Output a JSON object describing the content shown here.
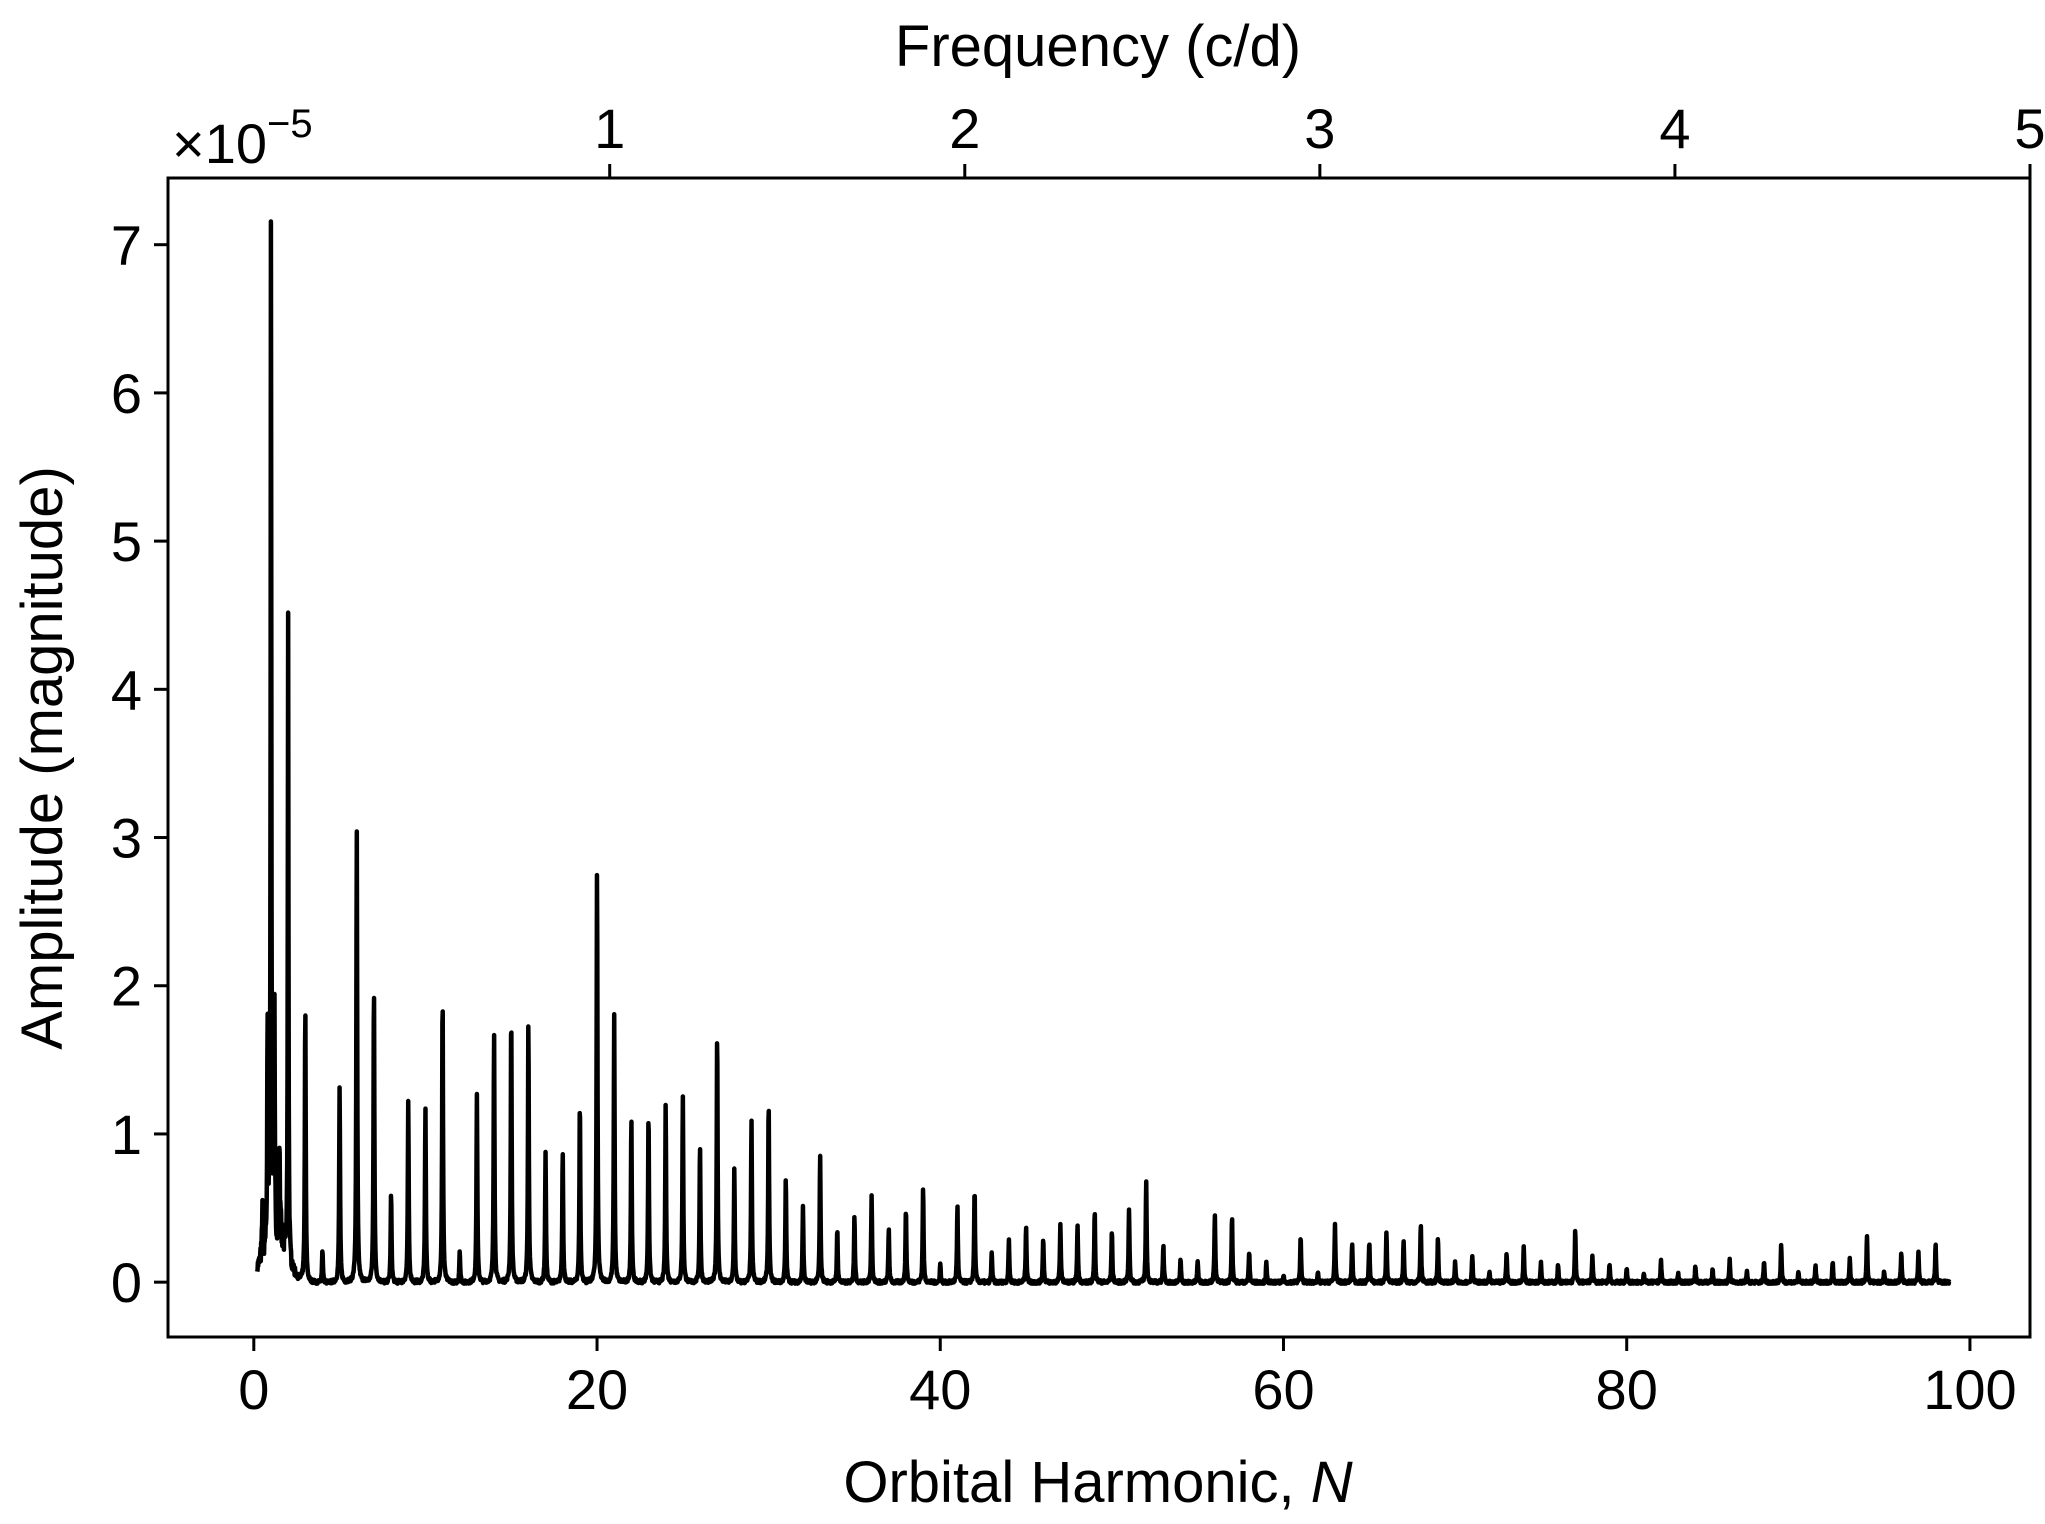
{
  "chart_data": {
    "type": "line",
    "title": "",
    "xlabel": "Orbital Harmonic, ",
    "xlabel_var": "N",
    "ylabel": "Amplitude (magnitude)",
    "top_xlabel": "Frequency (c/d)",
    "y_multiplier_label": "×10",
    "y_multiplier_exp": "−5",
    "xlim": [
      -5,
      103.5
    ],
    "ylim": [
      -0.37,
      7.45
    ],
    "top_xlim": [
      -0.244,
      5.0
    ],
    "x_ticks": [
      0,
      20,
      40,
      60,
      80,
      100
    ],
    "x_tick_labels": [
      "0",
      "20",
      "40",
      "60",
      "80",
      "100"
    ],
    "y_ticks": [
      0,
      1,
      2,
      3,
      4,
      5,
      6,
      7
    ],
    "y_tick_labels": [
      "0",
      "1",
      "2",
      "3",
      "4",
      "5",
      "6",
      "7"
    ],
    "top_ticks": [
      1,
      2,
      3,
      4,
      5
    ],
    "top_tick_labels": [
      "1",
      "2",
      "3",
      "4",
      "5"
    ],
    "grid": false,
    "line_color": "#000000",
    "x_range_data": [
      0.2,
      98.8
    ],
    "series": [
      {
        "peaks": [
          {
            "x": 0.5,
            "y": 0.3
          },
          {
            "x": 0.8,
            "y": 1.45
          },
          {
            "x": 1.0,
            "y": 7.08
          },
          {
            "x": 1.2,
            "y": 1.55
          },
          {
            "x": 1.5,
            "y": 0.7
          },
          {
            "x": 2.0,
            "y": 4.4
          },
          {
            "x": 3.0,
            "y": 1.88
          },
          {
            "x": 4.0,
            "y": 0.23
          },
          {
            "x": 5.0,
            "y": 1.33
          },
          {
            "x": 6.0,
            "y": 3.06
          },
          {
            "x": 7.0,
            "y": 2.04
          },
          {
            "x": 8.0,
            "y": 0.61
          },
          {
            "x": 9.0,
            "y": 1.23
          },
          {
            "x": 10.0,
            "y": 1.19
          },
          {
            "x": 11.0,
            "y": 1.97
          },
          {
            "x": 12.0,
            "y": 0.22
          },
          {
            "x": 13.0,
            "y": 1.27
          },
          {
            "x": 14.0,
            "y": 1.71
          },
          {
            "x": 15.0,
            "y": 1.85
          },
          {
            "x": 16.0,
            "y": 1.77
          },
          {
            "x": 17.0,
            "y": 0.87
          },
          {
            "x": 18.0,
            "y": 0.9
          },
          {
            "x": 19.0,
            "y": 1.24
          },
          {
            "x": 20.0,
            "y": 2.8
          },
          {
            "x": 21.0,
            "y": 1.8
          },
          {
            "x": 22.0,
            "y": 1.12
          },
          {
            "x": 23.0,
            "y": 1.16
          },
          {
            "x": 24.0,
            "y": 1.2
          },
          {
            "x": 25.0,
            "y": 1.27
          },
          {
            "x": 26.0,
            "y": 0.95
          },
          {
            "x": 27.0,
            "y": 1.71
          },
          {
            "x": 28.0,
            "y": 0.77
          },
          {
            "x": 29.0,
            "y": 1.09
          },
          {
            "x": 30.0,
            "y": 1.24
          },
          {
            "x": 31.0,
            "y": 0.71
          },
          {
            "x": 32.0,
            "y": 0.51
          },
          {
            "x": 33.0,
            "y": 0.86
          },
          {
            "x": 34.0,
            "y": 0.36
          },
          {
            "x": 35.0,
            "y": 0.46
          },
          {
            "x": 36.0,
            "y": 0.6
          },
          {
            "x": 37.0,
            "y": 0.36
          },
          {
            "x": 38.0,
            "y": 0.5
          },
          {
            "x": 39.0,
            "y": 0.65
          },
          {
            "x": 40.0,
            "y": 0.13
          },
          {
            "x": 41.0,
            "y": 0.52
          },
          {
            "x": 42.0,
            "y": 0.64
          },
          {
            "x": 43.0,
            "y": 0.21
          },
          {
            "x": 44.0,
            "y": 0.29
          },
          {
            "x": 45.0,
            "y": 0.39
          },
          {
            "x": 46.0,
            "y": 0.31
          },
          {
            "x": 47.0,
            "y": 0.4
          },
          {
            "x": 48.0,
            "y": 0.39
          },
          {
            "x": 49.0,
            "y": 0.48
          },
          {
            "x": 50.0,
            "y": 0.36
          },
          {
            "x": 51.0,
            "y": 0.5
          },
          {
            "x": 52.0,
            "y": 0.7
          },
          {
            "x": 53.0,
            "y": 0.26
          },
          {
            "x": 54.0,
            "y": 0.16
          },
          {
            "x": 55.0,
            "y": 0.15
          },
          {
            "x": 56.0,
            "y": 0.47
          },
          {
            "x": 57.0,
            "y": 0.45
          },
          {
            "x": 58.0,
            "y": 0.21
          },
          {
            "x": 59.0,
            "y": 0.13
          },
          {
            "x": 60.0,
            "y": 0.05
          },
          {
            "x": 61.0,
            "y": 0.31
          },
          {
            "x": 62.0,
            "y": 0.07
          },
          {
            "x": 63.0,
            "y": 0.39
          },
          {
            "x": 64.0,
            "y": 0.27
          },
          {
            "x": 65.0,
            "y": 0.28
          },
          {
            "x": 66.0,
            "y": 0.35
          },
          {
            "x": 67.0,
            "y": 0.29
          },
          {
            "x": 68.0,
            "y": 0.4
          },
          {
            "x": 69.0,
            "y": 0.3
          },
          {
            "x": 70.0,
            "y": 0.14
          },
          {
            "x": 71.0,
            "y": 0.19
          },
          {
            "x": 72.0,
            "y": 0.07
          },
          {
            "x": 73.0,
            "y": 0.21
          },
          {
            "x": 74.0,
            "y": 0.24
          },
          {
            "x": 75.0,
            "y": 0.14
          },
          {
            "x": 76.0,
            "y": 0.12
          },
          {
            "x": 77.0,
            "y": 0.35
          },
          {
            "x": 78.0,
            "y": 0.19
          },
          {
            "x": 79.0,
            "y": 0.13
          },
          {
            "x": 80.0,
            "y": 0.1
          },
          {
            "x": 81.0,
            "y": 0.07
          },
          {
            "x": 82.0,
            "y": 0.15
          },
          {
            "x": 83.0,
            "y": 0.07
          },
          {
            "x": 84.0,
            "y": 0.12
          },
          {
            "x": 85.0,
            "y": 0.09
          },
          {
            "x": 86.0,
            "y": 0.16
          },
          {
            "x": 87.0,
            "y": 0.08
          },
          {
            "x": 88.0,
            "y": 0.15
          },
          {
            "x": 89.0,
            "y": 0.25
          },
          {
            "x": 90.0,
            "y": 0.07
          },
          {
            "x": 91.0,
            "y": 0.12
          },
          {
            "x": 92.0,
            "y": 0.14
          },
          {
            "x": 93.0,
            "y": 0.16
          },
          {
            "x": 94.0,
            "y": 0.32
          },
          {
            "x": 95.0,
            "y": 0.08
          },
          {
            "x": 96.0,
            "y": 0.2
          },
          {
            "x": 97.0,
            "y": 0.2
          },
          {
            "x": 98.0,
            "y": 0.26
          }
        ]
      }
    ]
  }
}
